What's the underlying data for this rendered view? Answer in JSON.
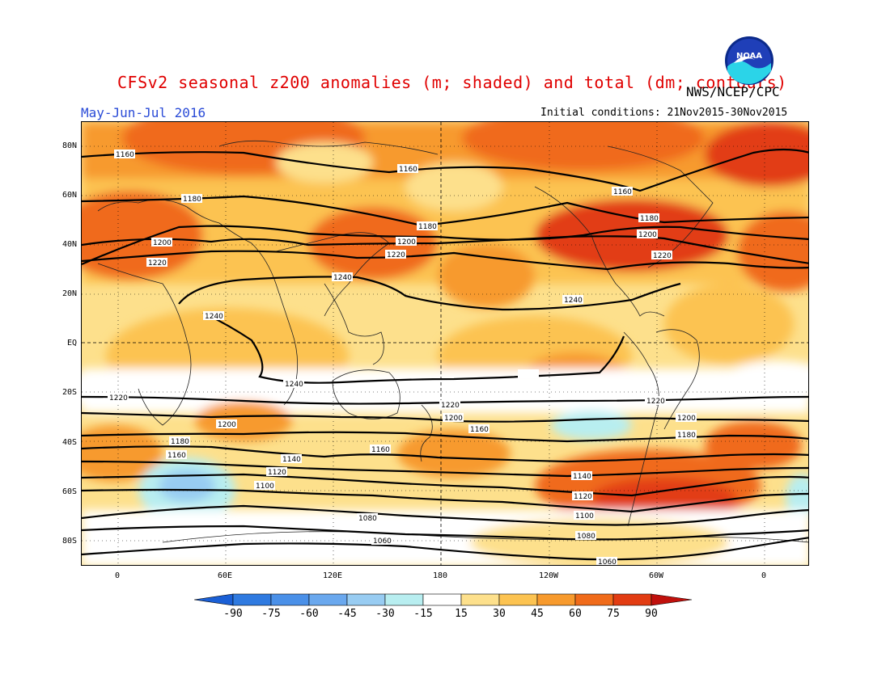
{
  "header": {
    "title": "CFSv2 seasonal z200 anomalies (m; shaded) and total (dm; contours)",
    "agency": "NWS/NCEP/CPC",
    "period": "May-Jun-Jul 2016",
    "initial_conditions": "Initial conditions: 21Nov2015-30Nov2015",
    "logo_text": "NOAA"
  },
  "map": {
    "lat_labels": [
      "80N",
      "60N",
      "40N",
      "20N",
      "EQ",
      "20S",
      "40S",
      "60S",
      "80S"
    ],
    "lon_labels": [
      "0",
      "60E",
      "120E",
      "180",
      "120W",
      "60W",
      "0"
    ],
    "contour_labels": [
      "1160",
      "1160",
      "1160",
      "1180",
      "1180",
      "1180",
      "1200",
      "1200",
      "1200",
      "1220",
      "1220",
      "1220",
      "1240",
      "1240",
      "1240",
      "1240",
      "1220",
      "1220",
      "1220",
      "1200",
      "1200",
      "1200",
      "1180",
      "1160",
      "1180",
      "1160",
      "1160",
      "1140",
      "1140",
      "1120",
      "1120",
      "1100",
      "1100",
      "1080",
      "1080",
      "1060",
      "1060"
    ]
  },
  "colorbar": {
    "labels": [
      "-90",
      "-75",
      "-60",
      "-45",
      "-30",
      "-15",
      "15",
      "30",
      "45",
      "60",
      "75",
      "90"
    ],
    "colors": [
      "#1a5fd6",
      "#2f7ae0",
      "#4a90e8",
      "#6aa8ee",
      "#98ccf2",
      "#b8eef0",
      "#ffffff",
      "#fde08c",
      "#fcc351",
      "#f79a2d",
      "#f06b1a",
      "#e23c12",
      "#c0100c"
    ]
  }
}
